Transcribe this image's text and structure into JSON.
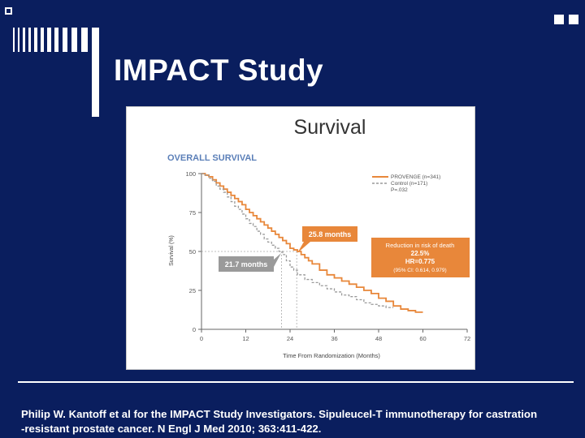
{
  "slide": {
    "title": "IMPACT Study",
    "citation_line1": "Philip W. Kantoff et al for the IMPACT Study Investigators. Sipuleucel-T immunotherapy for castration",
    "citation_line2": "-resistant prostate cancer.  N Engl J Med 2010; 363:411-422."
  },
  "colors": {
    "background": "#0a1e5e",
    "text": "#ffffff",
    "provenge": "#e8873a",
    "control": "#9a9a9a",
    "overall_survival_heading": "#5b7fb8"
  },
  "chart_data": {
    "type": "line",
    "title": "Survival",
    "subtitle": "OVERALL SURVIVAL",
    "xlabel": "Time From Randomization (Months)",
    "ylabel": "Survival (%)",
    "xlim": [
      0,
      72
    ],
    "ylim": [
      0,
      100
    ],
    "xticks": [
      0,
      12,
      24,
      36,
      48,
      60,
      72
    ],
    "yticks": [
      0,
      25,
      50,
      75,
      100
    ],
    "grid": false,
    "legend_position": "top-right",
    "legend_pvalue": "P=.032",
    "series": [
      {
        "name": "PROVENGE (n=341)",
        "color": "#e8873a",
        "style": "solid",
        "x": [
          0,
          1,
          2,
          3,
          4,
          5,
          6,
          7,
          8,
          9,
          10,
          11,
          12,
          13,
          14,
          15,
          16,
          17,
          18,
          19,
          20,
          21,
          22,
          23,
          24,
          25,
          26,
          27,
          28,
          29,
          30,
          32,
          34,
          36,
          38,
          40,
          42,
          44,
          46,
          48,
          50,
          52,
          54,
          56,
          58,
          60
        ],
        "y": [
          100,
          99,
          98,
          96,
          94,
          92,
          90,
          88,
          86,
          84,
          82,
          80,
          77,
          75,
          73,
          71,
          69,
          67,
          65,
          63,
          61,
          59,
          57,
          55,
          52,
          51,
          50,
          48,
          46,
          44,
          42,
          38,
          35,
          33,
          31,
          29,
          27,
          25,
          23,
          20,
          18,
          15,
          13,
          12,
          11,
          11
        ]
      },
      {
        "name": "Control (n=171)",
        "color": "#9a9a9a",
        "style": "dashed",
        "x": [
          0,
          1,
          2,
          3,
          4,
          5,
          6,
          7,
          8,
          9,
          10,
          11,
          12,
          13,
          14,
          15,
          16,
          17,
          18,
          19,
          20,
          21,
          22,
          23,
          24,
          25,
          26,
          28,
          30,
          32,
          34,
          36,
          38,
          40,
          42,
          44,
          46,
          48,
          50,
          52
        ],
        "y": [
          100,
          99,
          97,
          95,
          92,
          90,
          88,
          85,
          82,
          79,
          77,
          74,
          71,
          68,
          66,
          63,
          61,
          58,
          56,
          54,
          52,
          50,
          48,
          44,
          40,
          38,
          35,
          32,
          30,
          28,
          26,
          24,
          22,
          21,
          19,
          17,
          16,
          15,
          14,
          14
        ]
      }
    ],
    "annotations": {
      "provenge_median": {
        "label": "25.8 months",
        "x": 25.8,
        "y": 50
      },
      "control_median": {
        "label": "21.7 months",
        "x": 21.7,
        "y": 50
      },
      "hazard_box": {
        "line1": "Reduction in risk of death",
        "line2": "22.5%",
        "line3": "HR=0.775",
        "line4": "(95% CI: 0.614, 0.979)"
      }
    }
  }
}
